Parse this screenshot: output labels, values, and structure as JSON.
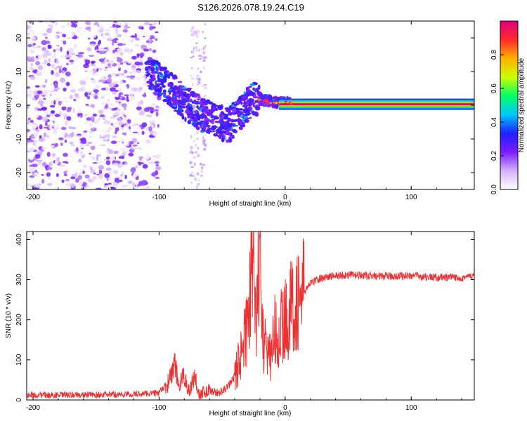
{
  "title": "S126.2026.078.19.24.C19",
  "chart_data": [
    {
      "type": "heatmap",
      "xlabel": "Height of straight line (km)",
      "ylabel": "Frequency (Hz)",
      "xlim": [
        -205,
        150
      ],
      "ylim": [
        -25,
        25
      ],
      "xticks": [
        -200,
        -100,
        0,
        100
      ],
      "yticks": [
        -20,
        -10,
        0,
        10,
        20
      ],
      "colorbar": {
        "label": "Normalized spectral amplitude",
        "range": [
          0,
          1
        ],
        "ticks": [
          "0.0",
          "0.2",
          "0.4",
          "0.6",
          "0.8"
        ],
        "colormap": [
          "#ffffff",
          "#d4b0ff",
          "#7a1cff",
          "#2020ff",
          "#00c8ff",
          "#00ff66",
          "#ccff00",
          "#ffb000",
          "#ff2a2a",
          "#e0007a"
        ]
      },
      "features": [
        {
          "name": "diffuse noise",
          "x_range": [
            -205,
            -110
          ],
          "freq_range": [
            -25,
            25
          ],
          "amplitude": 0.15
        },
        {
          "name": "descending trace",
          "points": [
            [
              -110,
              10
            ],
            [
              -95,
              6
            ],
            [
              -80,
              1
            ],
            [
              -65,
              -3
            ],
            [
              -45,
              -6
            ],
            [
              -35,
              -2
            ],
            [
              -25,
              2
            ],
            [
              -10,
              1
            ],
            [
              5,
              0.8
            ]
          ],
          "amplitude": 0.35
        },
        {
          "name": "carrier line",
          "x_range": [
            -5,
            150
          ],
          "freq": 0.3,
          "amplitude": 0.95
        }
      ]
    },
    {
      "type": "line",
      "xlabel": "Height of straight line (km)",
      "ylabel": "SNR (10 * v/v)",
      "xlim": [
        -205,
        150
      ],
      "ylim": [
        0,
        420
      ],
      "xticks": [
        -200,
        -100,
        0,
        100
      ],
      "yticks": [
        0,
        100,
        200,
        300,
        400
      ],
      "color": "#ee3030",
      "series": [
        {
          "name": "SNR",
          "x": [
            -205,
            -180,
            -150,
            -120,
            -100,
            -92,
            -88,
            -84,
            -80,
            -76,
            -72,
            -68,
            -60,
            -55,
            -50,
            -45,
            -40,
            -35,
            -30,
            -27,
            -25,
            -23,
            -20,
            -18,
            -15,
            -12,
            -10,
            -5,
            0,
            5,
            10,
            15,
            20,
            25,
            30,
            40,
            50,
            60,
            80,
            100,
            120,
            140,
            150
          ],
          "values": [
            12,
            12,
            13,
            14,
            18,
            45,
            90,
            35,
            60,
            20,
            60,
            15,
            25,
            18,
            20,
            35,
            60,
            120,
            180,
            300,
            420,
            200,
            380,
            150,
            120,
            110,
            150,
            170,
            200,
            230,
            250,
            270,
            290,
            300,
            305,
            310,
            312,
            310,
            308,
            310,
            305,
            305,
            310
          ]
        }
      ]
    }
  ]
}
